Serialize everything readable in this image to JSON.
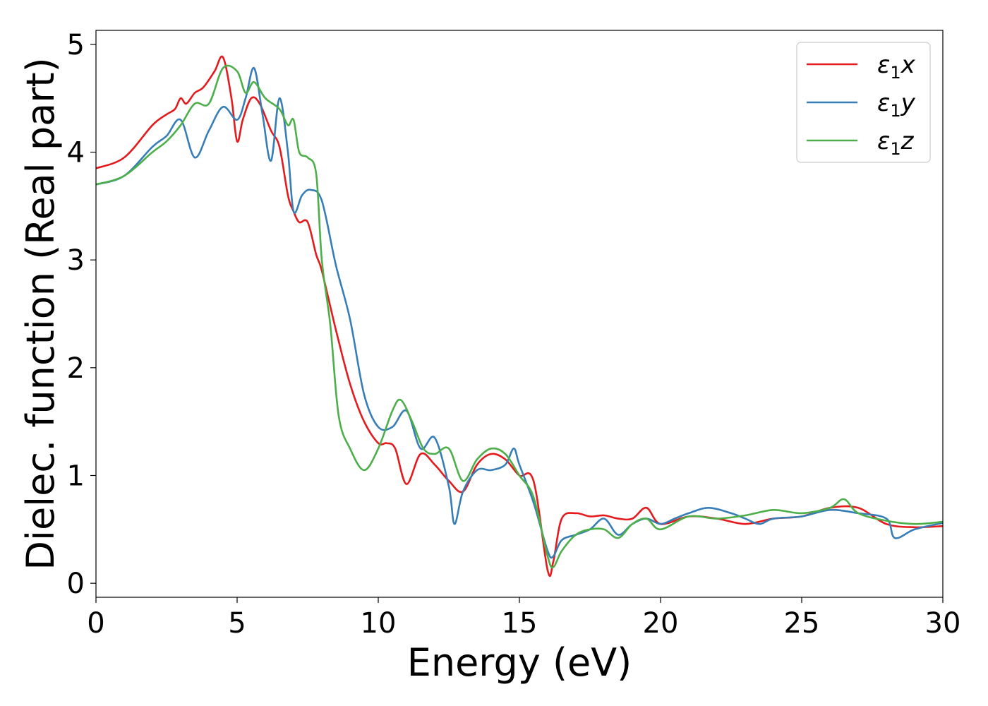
{
  "chart_data": {
    "type": "line",
    "xlabel": "Energy (eV)",
    "ylabel": "Dielec. function (Real part)",
    "xlim": [
      0,
      30
    ],
    "ylim": [
      -0.13,
      5.13
    ],
    "xticks": [
      0,
      5,
      10,
      15,
      20,
      25,
      30
    ],
    "yticks": [
      0,
      1,
      2,
      3,
      4,
      5
    ],
    "xtick_labels": [
      "0",
      "5",
      "10",
      "15",
      "20",
      "25",
      "30"
    ],
    "ytick_labels": [
      "0",
      "1",
      "2",
      "3",
      "4",
      "5"
    ],
    "grid": false,
    "legend_position": "top-right",
    "series": [
      {
        "name": "ε₁x",
        "legend_base": "ε",
        "legend_sub": "1",
        "legend_var": "x",
        "color": "#e41a1c",
        "x": [
          0,
          1,
          2,
          2.5,
          2.8,
          3,
          3.2,
          3.5,
          3.8,
          4.2,
          4.5,
          4.8,
          5.0,
          5.2,
          5.5,
          5.8,
          6.2,
          6.5,
          6.8,
          7.0,
          7.2,
          7.5,
          7.8,
          8.0,
          8.5,
          9.0,
          9.5,
          10.0,
          10.3,
          10.6,
          11.0,
          11.5,
          12.0,
          12.5,
          13.0,
          13.5,
          14.0,
          14.5,
          15.0,
          15.5,
          16.0,
          16.2,
          16.5,
          17.0,
          17.5,
          18.0,
          18.5,
          19.0,
          19.5,
          20.0,
          21.0,
          22.0,
          23.0,
          24.0,
          25.0,
          26.0,
          27.0,
          28.0,
          29.0,
          30.0
        ],
        "values": [
          3.85,
          3.95,
          4.25,
          4.35,
          4.4,
          4.5,
          4.45,
          4.55,
          4.6,
          4.75,
          4.88,
          4.5,
          4.1,
          4.3,
          4.5,
          4.45,
          4.2,
          4.05,
          3.6,
          3.45,
          3.35,
          3.35,
          3.05,
          2.9,
          2.35,
          1.85,
          1.5,
          1.3,
          1.3,
          1.25,
          0.92,
          1.2,
          1.1,
          0.95,
          0.85,
          1.1,
          1.2,
          1.15,
          1.0,
          0.95,
          0.12,
          0.2,
          0.6,
          0.65,
          0.62,
          0.63,
          0.6,
          0.6,
          0.7,
          0.55,
          0.62,
          0.6,
          0.55,
          0.6,
          0.62,
          0.7,
          0.7,
          0.55,
          0.52,
          0.53
        ]
      },
      {
        "name": "ε₁y",
        "legend_base": "ε",
        "legend_sub": "1",
        "legend_var": "y",
        "color": "#377eb8",
        "x": [
          0,
          1,
          2,
          2.5,
          3.0,
          3.5,
          4.0,
          4.5,
          5.0,
          5.3,
          5.6,
          5.9,
          6.2,
          6.5,
          6.8,
          7.0,
          7.3,
          7.6,
          8.0,
          8.5,
          9.0,
          9.5,
          10.0,
          10.5,
          11.0,
          11.5,
          12.0,
          12.5,
          12.7,
          13.0,
          13.5,
          14.0,
          14.5,
          14.8,
          15.0,
          15.5,
          16.0,
          16.2,
          16.5,
          17.0,
          17.5,
          18.0,
          18.5,
          19.0,
          19.5,
          20.0,
          20.5,
          21.0,
          21.7,
          22.5,
          23.0,
          23.5,
          24.0,
          25.0,
          26.0,
          27.0,
          28.0,
          28.3,
          29.0,
          30.0
        ],
        "values": [
          3.7,
          3.78,
          4.05,
          4.15,
          4.3,
          3.95,
          4.2,
          4.42,
          4.3,
          4.5,
          4.78,
          4.35,
          3.92,
          4.5,
          4.0,
          3.45,
          3.6,
          3.65,
          3.55,
          2.95,
          2.45,
          1.75,
          1.45,
          1.45,
          1.6,
          1.25,
          1.35,
          0.9,
          0.55,
          0.85,
          1.05,
          1.05,
          1.1,
          1.25,
          1.1,
          0.75,
          0.3,
          0.25,
          0.4,
          0.45,
          0.5,
          0.6,
          0.45,
          0.55,
          0.6,
          0.55,
          0.6,
          0.65,
          0.7,
          0.65,
          0.6,
          0.55,
          0.6,
          0.62,
          0.68,
          0.65,
          0.6,
          0.42,
          0.5,
          0.56
        ]
      },
      {
        "name": "ε₁z",
        "legend_base": "ε",
        "legend_sub": "1",
        "legend_var": "z",
        "color": "#4daf4a",
        "x": [
          0,
          1,
          2,
          2.5,
          3.0,
          3.5,
          4.0,
          4.5,
          5.0,
          5.3,
          5.6,
          6.0,
          6.5,
          6.8,
          7.0,
          7.2,
          7.5,
          7.8,
          8.0,
          8.3,
          8.6,
          9.0,
          9.5,
          10.0,
          10.5,
          10.8,
          11.2,
          11.6,
          12.0,
          12.5,
          13.0,
          13.5,
          14.0,
          14.5,
          15.0,
          15.5,
          16.0,
          16.2,
          16.5,
          17.0,
          17.5,
          18.0,
          18.5,
          19.0,
          19.5,
          20.0,
          21.0,
          22.0,
          23.0,
          24.0,
          25.0,
          26.0,
          26.5,
          27.0,
          28.0,
          29.0,
          30.0
        ],
        "values": [
          3.7,
          3.78,
          4.0,
          4.1,
          4.25,
          4.45,
          4.45,
          4.78,
          4.75,
          4.55,
          4.65,
          4.5,
          4.4,
          4.25,
          4.3,
          4.0,
          3.95,
          3.8,
          3.0,
          2.4,
          1.55,
          1.25,
          1.05,
          1.25,
          1.6,
          1.7,
          1.5,
          1.25,
          1.2,
          1.25,
          0.95,
          1.15,
          1.25,
          1.2,
          1.0,
          0.8,
          0.25,
          0.15,
          0.3,
          0.45,
          0.5,
          0.5,
          0.42,
          0.55,
          0.6,
          0.5,
          0.62,
          0.6,
          0.63,
          0.68,
          0.65,
          0.7,
          0.78,
          0.65,
          0.58,
          0.55,
          0.57
        ]
      }
    ]
  }
}
